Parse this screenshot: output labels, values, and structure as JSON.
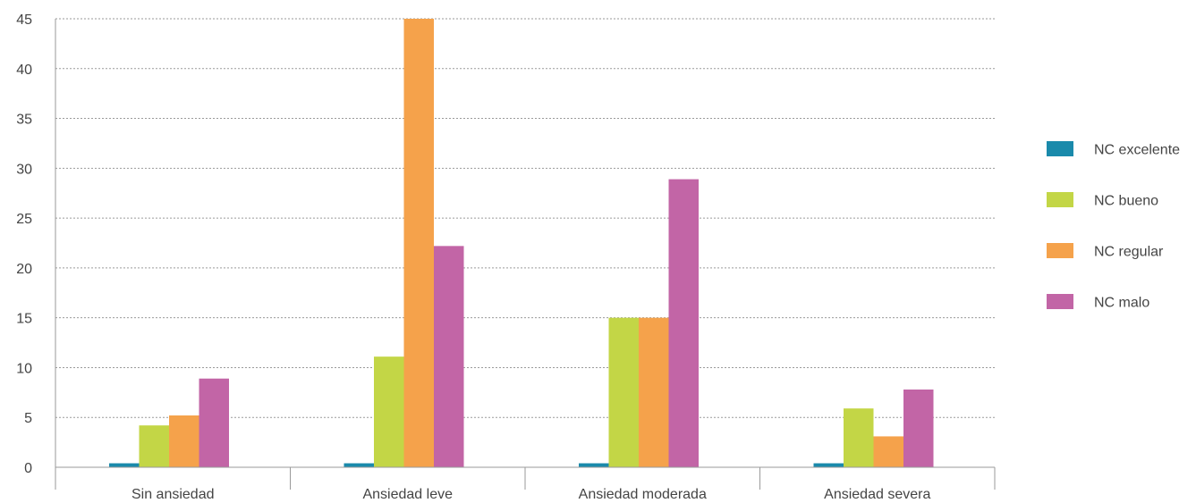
{
  "chart_data": {
    "type": "bar",
    "categories": [
      "Sin ansiedad",
      "Ansiedad leve",
      "Ansiedad moderada",
      "Ansiedad severa"
    ],
    "series": [
      {
        "name": "NC excelente",
        "color": "#1a8aab",
        "values": [
          0.4,
          0.4,
          0.4,
          0.4
        ]
      },
      {
        "name": "NC bueno",
        "color": "#c3d646",
        "values": [
          4.2,
          11.1,
          15.0,
          5.9
        ]
      },
      {
        "name": "NC regular",
        "color": "#f5a24b",
        "values": [
          5.2,
          45.0,
          15.0,
          3.1
        ]
      },
      {
        "name": "NC malo",
        "color": "#c265a6",
        "values": [
          8.9,
          22.2,
          28.9,
          7.8
        ]
      }
    ],
    "ylim": [
      0,
      45
    ],
    "yticks": [
      0,
      5,
      10,
      15,
      20,
      25,
      30,
      35,
      40,
      45
    ],
    "grid": true,
    "legend_position": "right"
  }
}
